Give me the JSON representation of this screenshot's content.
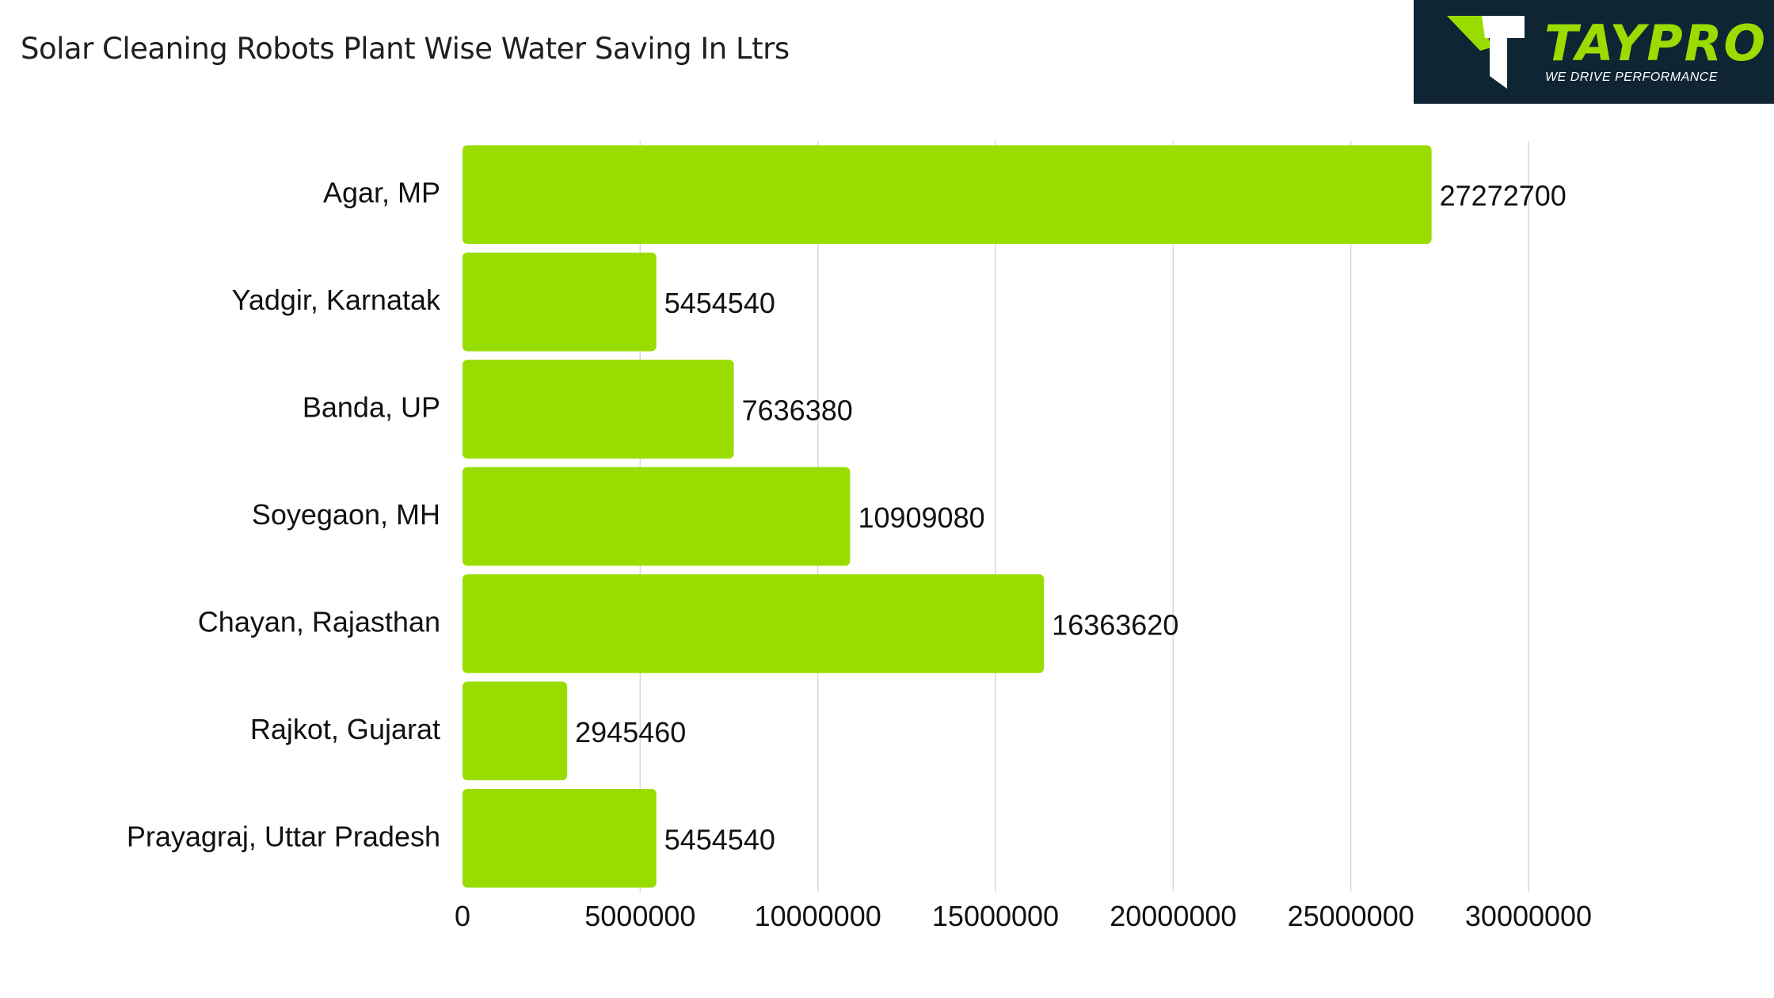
{
  "title": "Solar Cleaning Robots Plant Wise Water Saving In Ltrs",
  "logo": {
    "wordmark": "TAYPRO",
    "tagline": "WE DRIVE PERFORMANCE",
    "icon": "taypro-t-logo-icon",
    "background": "#0f2533",
    "accent": "#9bdc00"
  },
  "chart_data": {
    "type": "bar",
    "orientation": "horizontal",
    "title": "Solar Cleaning Robots Plant Wise Water Saving In Ltrs",
    "categories": [
      "Agar, MP",
      "Yadgir, Karnatak",
      "Banda, UP",
      "Soyegaon, MH",
      "Chayan, Rajasthan",
      "Rajkot, Gujarat",
      "Prayagraj, Uttar Pradesh"
    ],
    "values": [
      27272700,
      5454540,
      7636380,
      10909080,
      16363620,
      2945460,
      5454540
    ],
    "value_labels": [
      "27272700",
      "5454540",
      "7636380",
      "10909080",
      "16363620",
      "2945460",
      "5454540"
    ],
    "xlim": [
      0,
      30000000
    ],
    "xticks": [
      "0",
      "5000000",
      "10000000",
      "15000000",
      "20000000",
      "25000000",
      "30000000"
    ],
    "xlabel": "",
    "ylabel": "",
    "grid": "vertical",
    "bar_color": "#99dd00",
    "grid_color": "#d9d9d9"
  }
}
